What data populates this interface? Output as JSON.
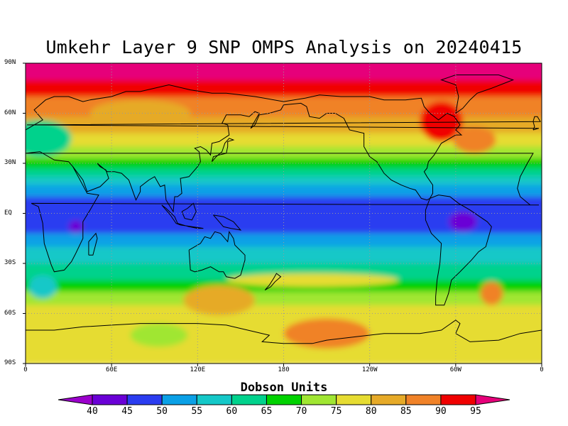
{
  "title": "Umkehr Layer 9 SNP OMPS Analysis on 20240415",
  "lat_labels": [
    "90N",
    "60N",
    "30N",
    "EQ",
    "30S",
    "60S",
    "90S"
  ],
  "lon_labels": [
    "0",
    "60E",
    "120E",
    "180",
    "120W",
    "60W",
    "0"
  ],
  "colorbar": {
    "title": "Dobson Units",
    "levels": [
      "40",
      "45",
      "50",
      "55",
      "60",
      "65",
      "70",
      "75",
      "80",
      "85",
      "90",
      "95"
    ],
    "colors": [
      "#9b00cc",
      "#6a00d6",
      "#2a3cf0",
      "#0aa0e6",
      "#14c8c8",
      "#00d28c",
      "#00d200",
      "#a0e632",
      "#e6dc32",
      "#e6aa28",
      "#f08228",
      "#f00000",
      "#e6007a"
    ]
  },
  "map": {
    "lon_range": [
      0,
      360
    ],
    "lat_range": [
      -90,
      90
    ],
    "grid_style": "dotted",
    "bands": [
      {
        "lat_top": 90,
        "lat_bottom": 80,
        "dobson": 95
      },
      {
        "lat_top": 80,
        "lat_bottom": 70,
        "dobson": 92
      },
      {
        "lat_top": 70,
        "lat_bottom": 58,
        "dobson": 85
      },
      {
        "lat_top": 58,
        "lat_bottom": 48,
        "dobson": 80
      },
      {
        "lat_top": 48,
        "lat_bottom": 40,
        "dobson": 75
      },
      {
        "lat_top": 40,
        "lat_bottom": 33,
        "dobson": 70
      },
      {
        "lat_top": 33,
        "lat_bottom": 27,
        "dobson": 65
      },
      {
        "lat_top": 27,
        "lat_bottom": 22,
        "dobson": 60
      },
      {
        "lat_top": 22,
        "lat_bottom": 17,
        "dobson": 55
      },
      {
        "lat_top": 17,
        "lat_bottom": 10,
        "dobson": 50
      },
      {
        "lat_top": 10,
        "lat_bottom": -12,
        "dobson": 45
      },
      {
        "lat_top": -12,
        "lat_bottom": -20,
        "dobson": 50
      },
      {
        "lat_top": -20,
        "lat_bottom": -30,
        "dobson": 55
      },
      {
        "lat_top": -30,
        "lat_bottom": -40,
        "dobson": 60
      },
      {
        "lat_top": -40,
        "lat_bottom": -47,
        "dobson": 65
      },
      {
        "lat_top": -47,
        "lat_bottom": -55,
        "dobson": 70
      },
      {
        "lat_top": -55,
        "lat_bottom": -90,
        "dobson": 75
      }
    ],
    "blobs": [
      {
        "lon": 10,
        "lat": 45,
        "rx": 22,
        "ry": 11,
        "dobson": 60
      },
      {
        "lon": 80,
        "lat": 60,
        "rx": 35,
        "ry": 8,
        "dobson": 80
      },
      {
        "lon": 290,
        "lat": 55,
        "rx": 15,
        "ry": 12,
        "dobson": 92
      },
      {
        "lon": 313,
        "lat": 44,
        "rx": 15,
        "ry": 8,
        "dobson": 85
      },
      {
        "lon": 135,
        "lat": -52,
        "rx": 25,
        "ry": 9,
        "dobson": 80
      },
      {
        "lon": 210,
        "lat": -72,
        "rx": 30,
        "ry": 9,
        "dobson": 85
      },
      {
        "lon": 93,
        "lat": -73,
        "rx": 20,
        "ry": 7,
        "dobson": 70
      },
      {
        "lon": 325,
        "lat": -48,
        "rx": 8,
        "ry": 7,
        "dobson": 85
      },
      {
        "lon": 12,
        "lat": -44,
        "rx": 10,
        "ry": 7,
        "dobson": 55
      },
      {
        "lon": 200,
        "lat": -40,
        "rx": 60,
        "ry": 4,
        "dobson": 75
      },
      {
        "lon": 305,
        "lat": -5,
        "rx": 10,
        "ry": 6,
        "dobson": 40
      },
      {
        "lon": 35,
        "lat": -8,
        "rx": 5,
        "ry": 4,
        "dobson": 40
      }
    ]
  }
}
